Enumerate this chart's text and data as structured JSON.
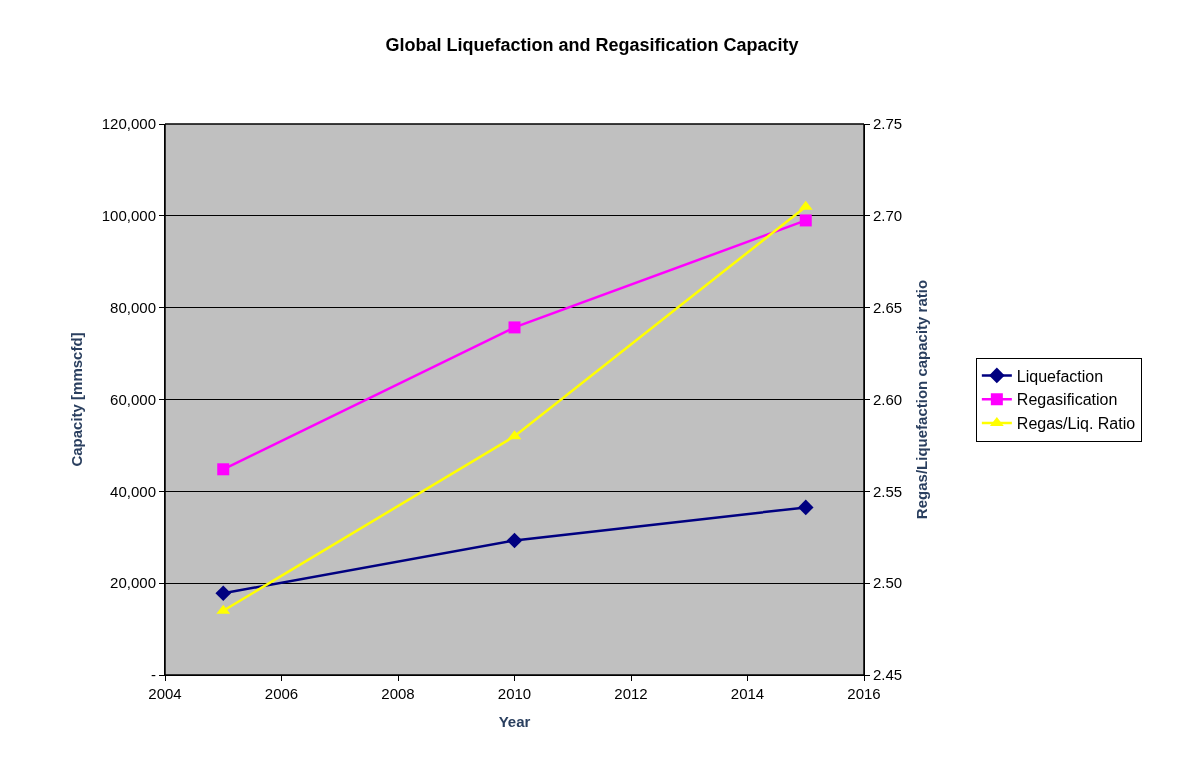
{
  "chart_data": {
    "type": "line",
    "title": "Global Liquefaction and Regasification Capacity",
    "xlabel": "Year",
    "ylabel": "Capacity [mmscfd]",
    "y2label": "Regas/Liquefaction capacity ratio",
    "x": [
      2005,
      2010,
      2015
    ],
    "series": [
      {
        "name": "Liquefaction",
        "color": "#000080",
        "marker": "diamond",
        "values": [
          17800,
          29300,
          36500
        ]
      },
      {
        "name": "Regasification",
        "color": "#ff00ff",
        "marker": "square",
        "values": [
          44800,
          75700,
          99000
        ]
      },
      {
        "name": "Regas/Liq. Ratio",
        "color": "#ffff00",
        "marker": "triangle",
        "axis": "y2",
        "values": [
          2.485,
          2.58,
          2.705
        ]
      }
    ],
    "xlim": [
      2004,
      2016
    ],
    "xticks": [
      2004,
      2006,
      2008,
      2010,
      2012,
      2014,
      2016
    ],
    "ylim": [
      0,
      120000
    ],
    "yticks": [
      {
        "value": 0,
        "label": "-"
      },
      {
        "value": 20000,
        "label": "20,000"
      },
      {
        "value": 40000,
        "label": "40,000"
      },
      {
        "value": 60000,
        "label": "60,000"
      },
      {
        "value": 80000,
        "label": "80,000"
      },
      {
        "value": 100000,
        "label": "100,000"
      },
      {
        "value": 120000,
        "label": "120,000"
      }
    ],
    "y2lim": [
      2.45,
      2.75
    ],
    "y2ticks": [
      {
        "value": 2.45,
        "label": "2.45"
      },
      {
        "value": 2.5,
        "label": "2.50"
      },
      {
        "value": 2.55,
        "label": "2.55"
      },
      {
        "value": 2.6,
        "label": "2.60"
      },
      {
        "value": 2.65,
        "label": "2.65"
      },
      {
        "value": 2.7,
        "label": "2.70"
      },
      {
        "value": 2.75,
        "label": "2.75"
      }
    ],
    "grid": "y",
    "legend": "right",
    "line_style": "solid"
  }
}
